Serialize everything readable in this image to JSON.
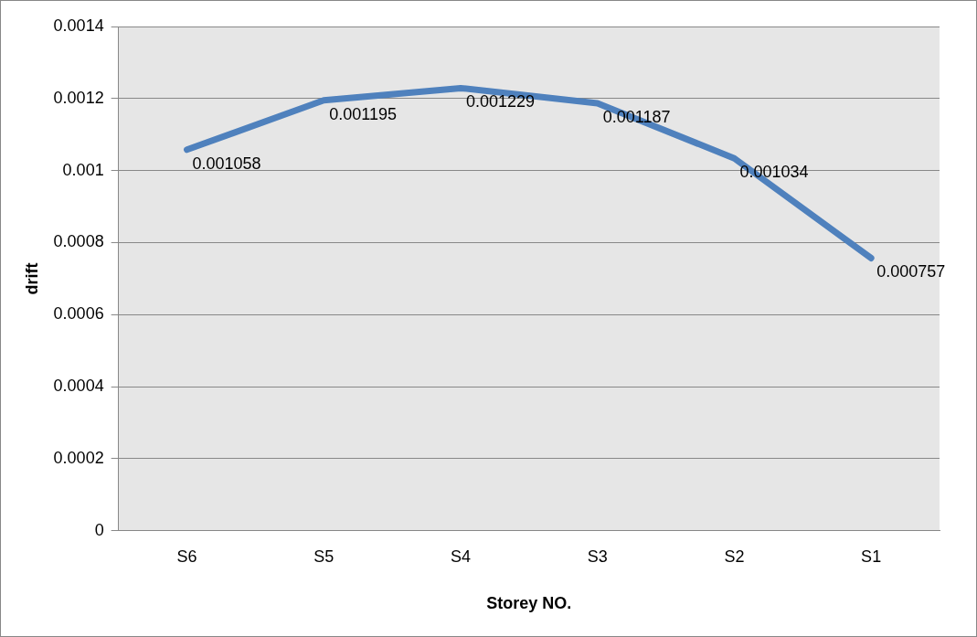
{
  "chart_data": {
    "type": "line",
    "xlabel": "Storey NO.",
    "ylabel": "drift",
    "categories": [
      "S6",
      "S5",
      "S4",
      "S3",
      "S2",
      "S1"
    ],
    "series": [
      {
        "color": "#4f81bd",
        "values": [
          0.001058,
          0.001195,
          0.001229,
          0.001187,
          0.001034,
          0.000757
        ]
      }
    ],
    "ylim": [
      0,
      0.0014
    ],
    "yticks": [
      0,
      0.0002,
      0.0004,
      0.0006,
      0.0008,
      0.001,
      0.0012,
      0.0014
    ],
    "grid": "y",
    "legend": false,
    "marker": "none",
    "data_labels": true
  }
}
